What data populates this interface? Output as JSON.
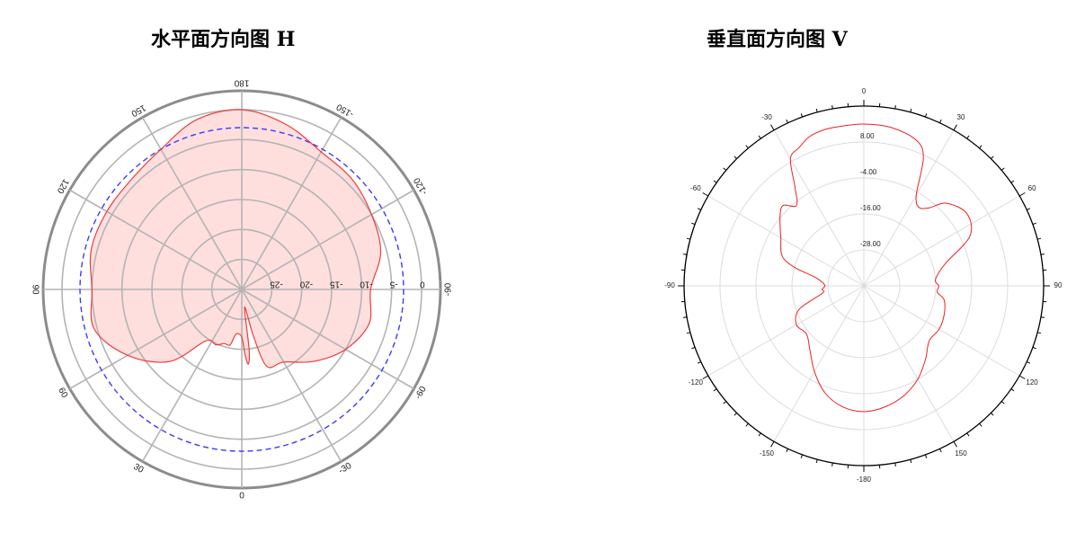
{
  "chart_data": [
    {
      "type": "polar-line",
      "title": "水平面方向图 H",
      "angle_ticks": [
        "0",
        "30",
        "60",
        "90",
        "120",
        "150",
        "180",
        "-150",
        "-120",
        "-90",
        "-60",
        "-30"
      ],
      "angle_tick_values": [
        0,
        30,
        60,
        90,
        120,
        150,
        180,
        -150,
        -120,
        -90,
        -60,
        -30
      ],
      "radial_range_db": [
        -30,
        0
      ],
      "radial_tick_labels": [
        "0",
        "-5",
        "-10",
        "-15",
        "-20",
        "-25"
      ],
      "radial_tick_values": [
        0,
        -5,
        -10,
        -15,
        -20,
        -25
      ],
      "reference_ring_db": -3,
      "grid": true,
      "colors": {
        "pattern_fill": "#ffdede",
        "pattern_line": "#ef3b3b",
        "reference": "#3a3aff",
        "grid": "#b4b4b4",
        "frame": "#8c8c8c"
      },
      "series": [
        {
          "unit": "dB",
          "angles_deg": [
            180,
            165,
            150,
            135,
            120,
            105,
            90,
            75,
            60,
            45,
            35,
            25,
            18,
            12,
            9,
            6,
            0,
            -3,
            -5,
            -7,
            -9,
            -14,
            -18,
            -30,
            -45,
            -60,
            -75,
            -90,
            -105,
            -120,
            -135,
            -150,
            -165
          ],
          "values_db": [
            0,
            -0.7,
            -3,
            -4,
            -4,
            -4,
            -5,
            -4.5,
            -8,
            -13,
            -19.5,
            -19.8,
            -20.5,
            -20.5,
            -22,
            -22.6,
            -22,
            -19,
            -17.5,
            -20,
            -27,
            -22,
            -16.5,
            -16,
            -13,
            -10,
            -8,
            -8.5,
            -6,
            -5,
            -4,
            -3.5,
            -1.5
          ]
        }
      ]
    },
    {
      "type": "polar-line",
      "title": "垂直面方向图 V",
      "angle_ticks": [
        "0",
        "30",
        "60",
        "90",
        "120",
        "150",
        "-180",
        "-150",
        "-120",
        "-90",
        "-60",
        "-30"
      ],
      "angle_tick_values": [
        0,
        30,
        60,
        90,
        120,
        150,
        180,
        -150,
        -120,
        -90,
        -60,
        -30
      ],
      "radial_range": [
        -40,
        20
      ],
      "radial_tick_labels": [
        "8.00",
        "-4.00",
        "-16.00",
        "-28.00"
      ],
      "radial_tick_values": [
        8,
        -4,
        -16,
        -28
      ],
      "grid": true,
      "colors": {
        "pattern_line": "#ee2020",
        "grid": "#dcdcdc",
        "frame": "#000000"
      },
      "series": [
        {
          "angles_deg": [
            0,
            10,
            20,
            25,
            30,
            35,
            40,
            45,
            55,
            65,
            75,
            85,
            90,
            95,
            100,
            110,
            120,
            130,
            140,
            150,
            160,
            170,
            180,
            -170,
            -160,
            -150,
            -140,
            -130,
            -120,
            -110,
            -100,
            -95,
            -90,
            -85,
            -80,
            -75,
            -70,
            -60,
            -50,
            -45,
            -40,
            -35,
            -30,
            -25,
            -20,
            -15,
            -10
          ],
          "values": [
            14,
            13.6,
            11.6,
            7,
            -5,
            -8,
            -6,
            -1,
            2,
            -1,
            -12,
            -16,
            -15,
            -15.4,
            -12.8,
            -11.5,
            -11,
            -11.5,
            -8,
            -4,
            -1,
            1,
            2,
            1,
            -2,
            -7,
            -12,
            -15,
            -14,
            -17,
            -26,
            -26,
            -27,
            -26,
            -23.5,
            -16,
            -11,
            -8,
            -3.5,
            -2,
            -5,
            0,
            9,
            11,
            13,
            13.7,
            13.8
          ]
        }
      ]
    }
  ]
}
